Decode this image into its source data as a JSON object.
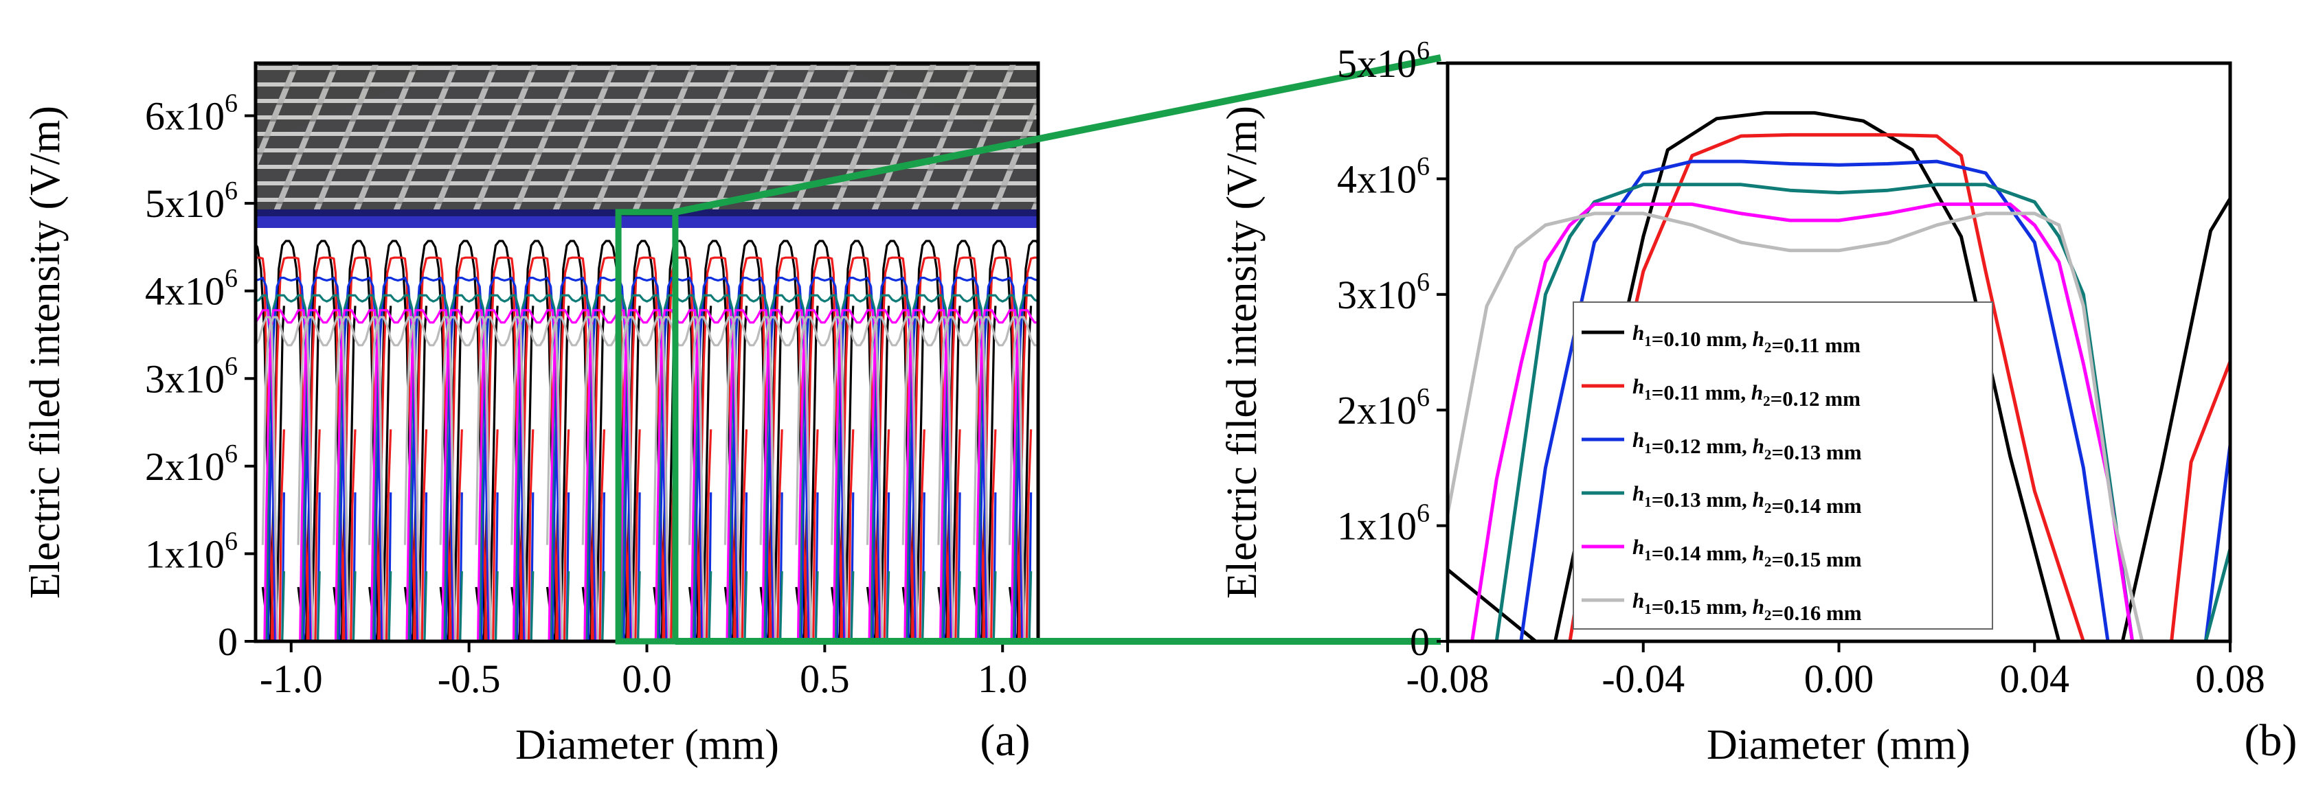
{
  "chart_data": [
    {
      "type": "line",
      "panel_label": "(a)",
      "xlabel": "Diameter (mm)",
      "ylabel": "Electric filed intensity (V/m)",
      "xlim": [
        -1.1,
        1.1
      ],
      "ylim": [
        0,
        6600000
      ],
      "x_ticks": [
        -1.0,
        -0.5,
        0.0,
        0.5,
        1.0
      ],
      "x_tick_labels": [
        "-1.0",
        "-0.5",
        "0.0",
        "0.5",
        "1.0"
      ],
      "y_ticks": [
        0,
        1000000,
        2000000,
        3000000,
        4000000,
        5000000,
        6000000
      ],
      "y_tick_labels": [
        {
          "mant": "0",
          "exp": ""
        },
        {
          "mant": "1x10",
          "exp": "6"
        },
        {
          "mant": "2x10",
          "exp": "6"
        },
        {
          "mant": "3x10",
          "exp": "6"
        },
        {
          "mant": "4x10",
          "exp": "6"
        },
        {
          "mant": "5x10",
          "exp": "6"
        },
        {
          "mant": "6x10",
          "exp": "6"
        }
      ],
      "pattern": {
        "period_mm": 0.1,
        "note": "periodic repetition of the single-cell profiles shown in panel (b) across the diameter"
      },
      "inset": "3D rendering of grid electrode structure",
      "zoom_box": {
        "x": [
          -0.08,
          0.08
        ],
        "y": [
          0,
          4900000
        ]
      }
    },
    {
      "type": "line",
      "panel_label": "(b)",
      "xlabel": "Diameter (mm)",
      "ylabel": "Electric filed intensity (V/m)",
      "xlim": [
        -0.08,
        0.08
      ],
      "ylim": [
        0,
        5000000
      ],
      "x_ticks": [
        -0.08,
        -0.04,
        0.0,
        0.04,
        0.08
      ],
      "x_tick_labels": [
        "-0.08",
        "-0.04",
        "0.00",
        "0.04",
        "0.08"
      ],
      "y_ticks": [
        0,
        1000000,
        2000000,
        3000000,
        4000000,
        5000000
      ],
      "y_tick_labels": [
        {
          "mant": "0",
          "exp": ""
        },
        {
          "mant": "1x10",
          "exp": "6"
        },
        {
          "mant": "2x10",
          "exp": "6"
        },
        {
          "mant": "3x10",
          "exp": "6"
        },
        {
          "mant": "4x10",
          "exp": "6"
        },
        {
          "mant": "5x10",
          "exp": "6"
        }
      ],
      "legend_location": "center-right",
      "series": [
        {
          "name": "h1=0.10 mm, h2=0.11 mm",
          "h1_label": "=0.10 mm,",
          "h2_label": "=0.11 mm",
          "color": "#000000",
          "x": [
            -0.08,
            -0.062,
            -0.058,
            -0.05,
            -0.04,
            -0.035,
            -0.025,
            -0.015,
            -0.005,
            0.005,
            0.015,
            0.025,
            0.035,
            0.045,
            0.05,
            0.058,
            0.066,
            0.076,
            0.08
          ],
          "y": [
            620000,
            0,
            0,
            1600000,
            3500000,
            4250000,
            4520000,
            4570000,
            4570000,
            4500000,
            4250000,
            3500000,
            1600000,
            0,
            0,
            0,
            1500000,
            3550000,
            3830000
          ]
        },
        {
          "name": "h1=0.11 mm, h2=0.12 mm",
          "h1_label": "=0.11 mm,",
          "h2_label": "=0.12 mm",
          "color": "#ee1c1c",
          "x": [
            -0.08,
            -0.075,
            -0.055,
            -0.05,
            -0.04,
            -0.03,
            -0.02,
            -0.01,
            0.0,
            0.01,
            0.02,
            0.025,
            0.03,
            0.04,
            0.05,
            0.06,
            0.064,
            0.068,
            0.072,
            0.08
          ],
          "y": [
            0,
            0,
            0,
            1300000,
            3200000,
            4200000,
            4370000,
            4380000,
            4380000,
            4380000,
            4370000,
            4200000,
            3200000,
            1300000,
            0,
            0,
            0,
            0,
            1550000,
            2420000
          ]
        },
        {
          "name": "h1=0.12 mm, h2=0.13 mm",
          "h1_label": "=0.12 mm,",
          "h2_label": "=0.13 mm",
          "color": "#1030e0",
          "x": [
            -0.08,
            -0.075,
            -0.065,
            -0.06,
            -0.05,
            -0.04,
            -0.03,
            -0.02,
            -0.01,
            0.0,
            0.01,
            0.02,
            0.03,
            0.04,
            0.05,
            0.055,
            0.065,
            0.075,
            0.08
          ],
          "y": [
            0,
            0,
            0,
            1500000,
            3450000,
            4050000,
            4150000,
            4150000,
            4130000,
            4120000,
            4130000,
            4150000,
            4050000,
            3450000,
            1500000,
            0,
            0,
            0,
            1700000
          ]
        },
        {
          "name": "h1=0.13 mm, h2=0.14 mm",
          "h1_label": "=0.13 mm,",
          "h2_label": "=0.14 mm",
          "color": "#0f7c78",
          "x": [
            -0.08,
            -0.07,
            -0.065,
            -0.06,
            -0.055,
            -0.05,
            -0.04,
            -0.03,
            -0.02,
            -0.01,
            0.0,
            0.01,
            0.02,
            0.03,
            0.04,
            0.045,
            0.05,
            0.055,
            0.06,
            0.07,
            0.075,
            0.08
          ],
          "y": [
            0,
            0,
            1500000,
            3000000,
            3500000,
            3800000,
            3950000,
            3950000,
            3950000,
            3900000,
            3880000,
            3900000,
            3950000,
            3950000,
            3800000,
            3500000,
            3000000,
            1500000,
            0,
            0,
            0,
            800000
          ]
        },
        {
          "name": "h1=0.14 mm, h2=0.15 mm",
          "h1_label": "=0.14 mm,",
          "h2_label": "=0.15 mm",
          "color": "#ff00ff",
          "x": [
            -0.08,
            -0.075,
            -0.07,
            -0.065,
            -0.06,
            -0.055,
            -0.05,
            -0.04,
            -0.03,
            -0.02,
            -0.01,
            0.0,
            0.01,
            0.02,
            0.03,
            0.035,
            0.04,
            0.045,
            0.05,
            0.055,
            0.06,
            0.065,
            0.07,
            0.08
          ],
          "y": [
            0,
            0,
            1400000,
            2400000,
            3280000,
            3600000,
            3780000,
            3780000,
            3780000,
            3700000,
            3640000,
            3640000,
            3700000,
            3780000,
            3780000,
            3780000,
            3600000,
            3280000,
            2400000,
            1400000,
            0,
            0,
            0,
            0
          ]
        },
        {
          "name": "h1=0.15 mm, h2=0.16 mm",
          "h1_label": "=0.15 mm,",
          "h2_label": "=0.16 mm",
          "color": "#bbbbbb",
          "x": [
            -0.08,
            -0.072,
            -0.066,
            -0.06,
            -0.05,
            -0.04,
            -0.03,
            -0.02,
            -0.01,
            0.0,
            0.01,
            0.02,
            0.03,
            0.04,
            0.045,
            0.05,
            0.056,
            0.062,
            0.068,
            0.074,
            0.08
          ],
          "y": [
            1100000,
            2900000,
            3400000,
            3600000,
            3700000,
            3700000,
            3600000,
            3450000,
            3380000,
            3380000,
            3450000,
            3600000,
            3700000,
            3700000,
            3600000,
            2900000,
            1100000,
            0,
            0,
            0,
            0
          ]
        }
      ]
    }
  ]
}
